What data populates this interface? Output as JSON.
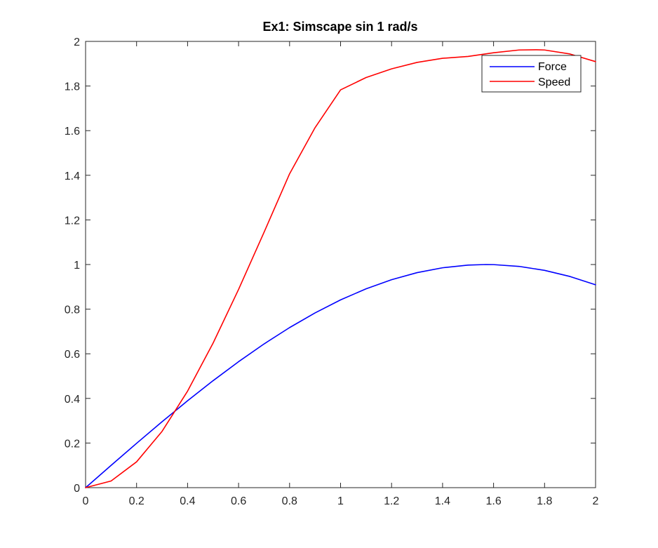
{
  "chart_data": {
    "type": "line",
    "title": "Ex1: Simscape sin 1 rad/s",
    "xlabel": "",
    "ylabel": "",
    "xlim": [
      0,
      2
    ],
    "ylim": [
      0,
      2
    ],
    "x_ticks": [
      "0",
      "0.2",
      "0.4",
      "0.6",
      "0.8",
      "1",
      "1.2",
      "1.4",
      "1.6",
      "1.8",
      "2"
    ],
    "y_ticks": [
      "0",
      "0.2",
      "0.4",
      "0.6",
      "0.8",
      "1",
      "1.2",
      "1.4",
      "1.6",
      "1.8",
      "2"
    ],
    "grid": false,
    "legend_position": "top-right",
    "series": [
      {
        "name": "Force",
        "color": "#0000ff",
        "x": [
          0,
          0.1,
          0.2,
          0.3,
          0.4,
          0.5,
          0.6,
          0.7,
          0.8,
          0.9,
          1.0,
          1.1,
          1.2,
          1.3,
          1.4,
          1.5,
          1.57,
          1.6,
          1.7,
          1.8,
          1.9,
          2.0
        ],
        "y": [
          0,
          0.0998,
          0.1987,
          0.2955,
          0.3894,
          0.4794,
          0.5646,
          0.6442,
          0.7174,
          0.7833,
          0.8415,
          0.8912,
          0.932,
          0.9636,
          0.9854,
          0.9975,
          1.0,
          0.9996,
          0.9917,
          0.9738,
          0.9463,
          0.9093
        ]
      },
      {
        "name": "Speed",
        "color": "#ff0000",
        "x": [
          0,
          0.1,
          0.2,
          0.3,
          0.4,
          0.5,
          0.6,
          0.7,
          0.8,
          0.9,
          1.0,
          1.1,
          1.2,
          1.3,
          1.4,
          1.5,
          1.6,
          1.7,
          1.77,
          1.8,
          1.9,
          2.0
        ],
        "y": [
          0,
          0.0299,
          0.1158,
          0.2525,
          0.4327,
          0.6479,
          0.8886,
          1.1449,
          1.4066,
          1.6135,
          1.7829,
          1.838,
          1.877,
          1.9059,
          1.9243,
          1.9327,
          1.9491,
          1.9615,
          1.9626,
          1.9615,
          1.9435,
          1.9094
        ]
      }
    ]
  }
}
